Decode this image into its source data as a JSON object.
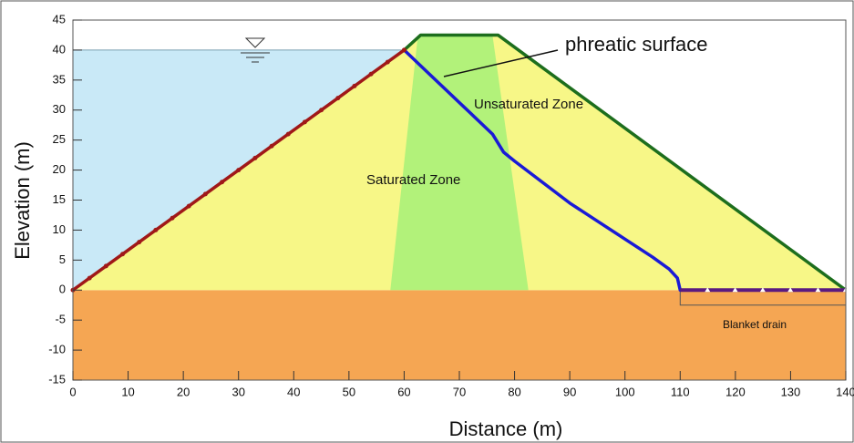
{
  "chart_data": {
    "type": "line",
    "xlabel": "Distance (m)",
    "ylabel": "Elevation (m)",
    "xlim": [
      0,
      140
    ],
    "ylim": [
      -15,
      45
    ],
    "xticks": [
      0,
      10,
      20,
      30,
      40,
      50,
      60,
      70,
      80,
      90,
      100,
      110,
      120,
      130,
      140
    ],
    "yticks": [
      -15,
      -10,
      -5,
      0,
      5,
      10,
      15,
      20,
      25,
      30,
      35,
      40,
      45
    ],
    "regions": [
      {
        "color": "#f5a653",
        "x": [
          0,
          140,
          140,
          0
        ],
        "y": [
          0,
          0,
          -15,
          -15
        ]
      },
      {
        "color": "#c9e9f7",
        "x": [
          0,
          0,
          60
        ],
        "y": [
          0,
          40,
          40
        ]
      },
      {
        "color": "#f7f787",
        "x": [
          0,
          60,
          63,
          77,
          140
        ],
        "y": [
          0,
          40,
          42.5,
          42.5,
          0
        ]
      },
      {
        "color": "#b2f27a",
        "x": [
          57.5,
          62.5,
          76,
          82.5
        ],
        "y": [
          0,
          42.5,
          42.5,
          0
        ]
      }
    ],
    "series": [
      {
        "color": "#a01818",
        "x": [
          0,
          60
        ],
        "y": [
          0,
          40
        ]
      },
      {
        "color": "#1d6e1d",
        "x": [
          60,
          63,
          77,
          140
        ],
        "y": [
          40,
          42.5,
          42.5,
          0
        ]
      },
      {
        "color": "#1a1ad6",
        "x": [
          60,
          64,
          68,
          72,
          76,
          78,
          80,
          85,
          90,
          95,
          100,
          105,
          108,
          109.5,
          110,
          140
        ],
        "y": [
          40,
          36.5,
          33,
          29.5,
          26,
          23,
          21.5,
          18,
          14.5,
          11.5,
          8.5,
          5.5,
          3.5,
          2,
          0,
          0
        ]
      }
    ],
    "annotations": [
      "phreatic surface",
      "Unsaturated Zone",
      "Saturated Zone",
      "Blanket drain"
    ]
  }
}
